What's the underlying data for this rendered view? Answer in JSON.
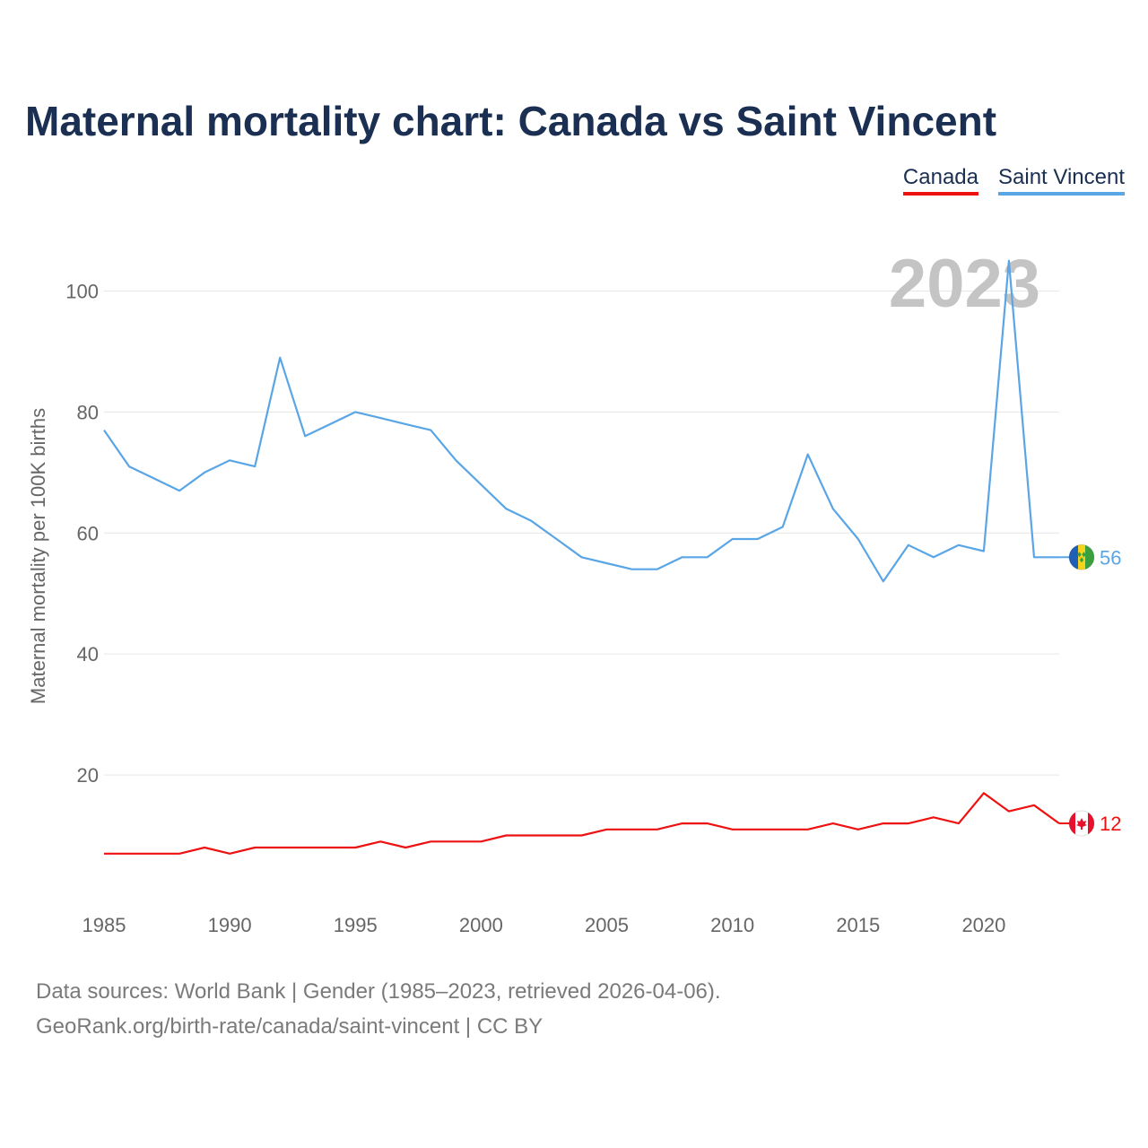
{
  "title": "Maternal mortality chart: Canada vs Saint Vincent",
  "legend": [
    {
      "name": "Canada",
      "color": "#ee1111"
    },
    {
      "name": "Saint Vincent",
      "color": "#5aa5e6"
    }
  ],
  "footer": {
    "line1": "Data sources: World Bank | Gender (1985–2023, retrieved 2026-04-06).",
    "line2": "GeoRank.org/birth-rate/canada/saint-vincent | CC BY"
  },
  "chart_data": {
    "type": "line",
    "title": "Maternal mortality chart: Canada vs Saint Vincent",
    "xlabel": "",
    "ylabel": "Maternal mortality per 100K births",
    "year_label": "2023",
    "xlim": [
      1985,
      2023
    ],
    "ylim": [
      0,
      110
    ],
    "x_ticks": [
      1985,
      1990,
      1995,
      2000,
      2005,
      2010,
      2015,
      2020
    ],
    "y_ticks": [
      20,
      40,
      60,
      80,
      100
    ],
    "grid": true,
    "legend_position": "top-right",
    "x": [
      1985,
      1986,
      1987,
      1988,
      1989,
      1990,
      1991,
      1992,
      1993,
      1994,
      1995,
      1996,
      1997,
      1998,
      1999,
      2000,
      2001,
      2002,
      2003,
      2004,
      2005,
      2006,
      2007,
      2008,
      2009,
      2010,
      2011,
      2012,
      2013,
      2014,
      2015,
      2016,
      2017,
      2018,
      2019,
      2020,
      2021,
      2022,
      2023
    ],
    "series": [
      {
        "name": "Saint Vincent",
        "color": "#5aa5e6",
        "flag": "saint-vincent-flag-icon",
        "end_label": "56",
        "values": [
          77,
          71,
          69,
          67,
          70,
          72,
          71,
          89,
          76,
          78,
          80,
          79,
          78,
          77,
          72,
          68,
          64,
          62,
          59,
          56,
          55,
          54,
          54,
          56,
          56,
          59,
          59,
          61,
          73,
          64,
          59,
          52,
          58,
          56,
          58,
          57,
          105,
          56,
          56
        ]
      },
      {
        "name": "Canada",
        "color": "#ee1111",
        "flag": "canada-flag-icon",
        "end_label": "12",
        "values": [
          7,
          7,
          7,
          7,
          8,
          7,
          8,
          8,
          8,
          8,
          8,
          9,
          8,
          9,
          9,
          9,
          10,
          10,
          10,
          10,
          11,
          11,
          11,
          12,
          12,
          11,
          11,
          11,
          11,
          12,
          11,
          12,
          12,
          13,
          12,
          17,
          14,
          15,
          12
        ]
      }
    ]
  }
}
